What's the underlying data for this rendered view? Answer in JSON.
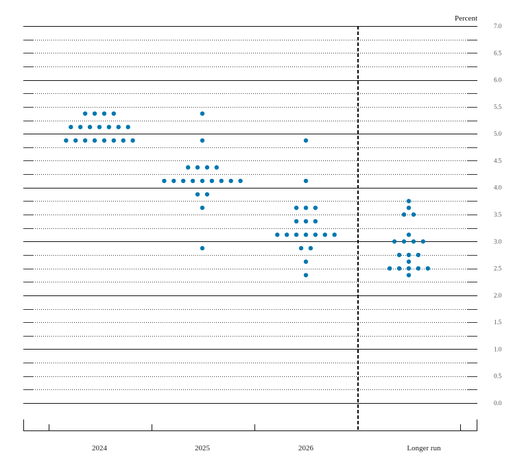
{
  "chart_data": {
    "type": "scatter",
    "subtype": "dot-plot",
    "title": "",
    "ylabel": "Percent",
    "xlabel": "",
    "ylim": [
      0.0,
      7.0
    ],
    "y_ticks": [
      "0.0",
      "0.5",
      "1.0",
      "1.5",
      "2.0",
      "2.5",
      "3.0",
      "3.5",
      "4.0",
      "4.5",
      "5.0",
      "5.5",
      "6.0",
      "6.5",
      "7.0"
    ],
    "grid": {
      "minor_step": 0.25,
      "solid_at_integers": true,
      "dotted_otherwise": true
    },
    "categories": [
      "2024",
      "2025",
      "2026",
      "Longer run"
    ],
    "separator_before": "Longer run",
    "dot_color": "#0077b0",
    "series": [
      {
        "name": "2024",
        "points": [
          {
            "value": 5.375,
            "count": 4
          },
          {
            "value": 5.125,
            "count": 7
          },
          {
            "value": 4.875,
            "count": 8
          }
        ]
      },
      {
        "name": "2025",
        "points": [
          {
            "value": 5.375,
            "count": 1
          },
          {
            "value": 4.875,
            "count": 1
          },
          {
            "value": 4.375,
            "count": 4
          },
          {
            "value": 4.125,
            "count": 9
          },
          {
            "value": 3.875,
            "count": 2
          },
          {
            "value": 3.625,
            "count": 1
          },
          {
            "value": 2.875,
            "count": 1
          }
        ]
      },
      {
        "name": "2026",
        "points": [
          {
            "value": 4.875,
            "count": 1
          },
          {
            "value": 4.125,
            "count": 1
          },
          {
            "value": 3.625,
            "count": 3
          },
          {
            "value": 3.375,
            "count": 3
          },
          {
            "value": 3.125,
            "count": 7
          },
          {
            "value": 2.875,
            "count": 2
          },
          {
            "value": 2.625,
            "count": 1
          },
          {
            "value": 2.375,
            "count": 1
          }
        ]
      },
      {
        "name": "Longer run",
        "points": [
          {
            "value": 3.75,
            "count": 1
          },
          {
            "value": 3.625,
            "count": 1
          },
          {
            "value": 3.5,
            "count": 2
          },
          {
            "value": 3.125,
            "count": 1
          },
          {
            "value": 3.0,
            "count": 4
          },
          {
            "value": 2.75,
            "count": 3
          },
          {
            "value": 2.625,
            "count": 1
          },
          {
            "value": 2.5,
            "count": 5
          },
          {
            "value": 2.375,
            "count": 1
          }
        ]
      }
    ]
  }
}
